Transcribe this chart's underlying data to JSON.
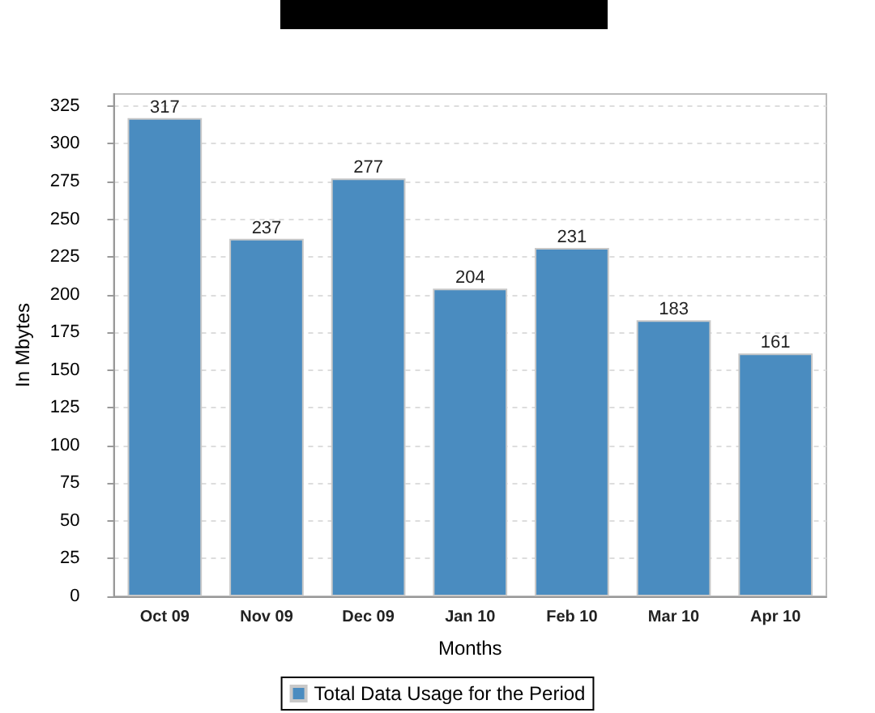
{
  "chart_data": {
    "type": "bar",
    "xlabel": "Months",
    "ylabel": "In Mbytes",
    "categories": [
      "Oct 09",
      "Nov 09",
      "Dec 09",
      "Jan 10",
      "Feb 10",
      "Mar 10",
      "Apr 10"
    ],
    "series": [
      {
        "name": "Total Data Usage for the Period",
        "color": "#4a8cc0",
        "values": [
          317,
          237,
          277,
          204,
          231,
          183,
          161
        ]
      }
    ],
    "ylim": [
      0,
      333
    ],
    "yticks": [
      0,
      25,
      50,
      75,
      100,
      125,
      150,
      175,
      200,
      225,
      250,
      275,
      300,
      325
    ],
    "grid": "y",
    "legend": "bottom",
    "data_labels": true
  }
}
